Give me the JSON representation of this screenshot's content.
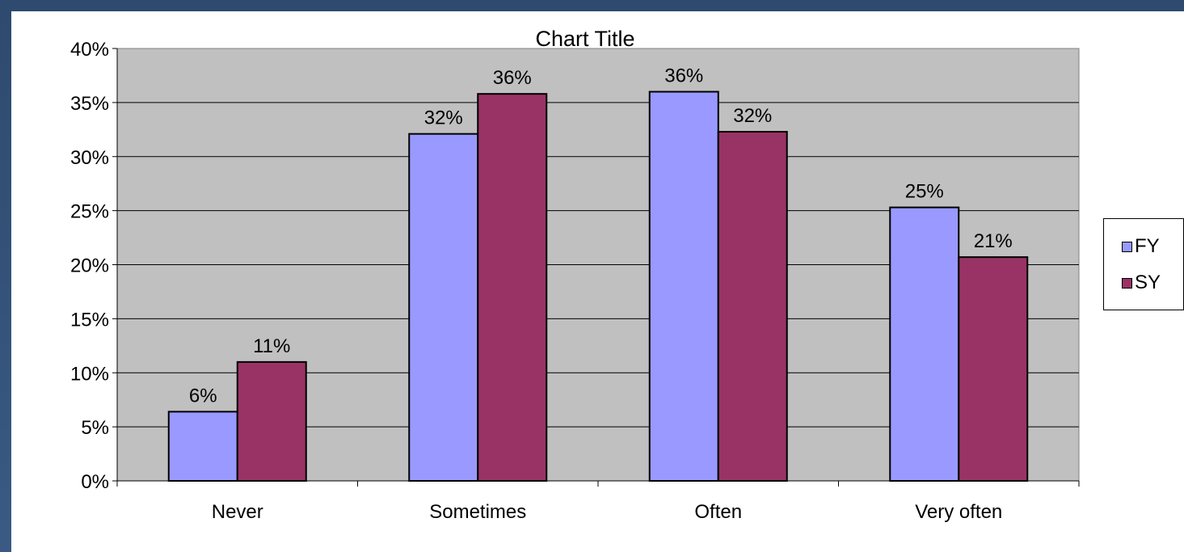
{
  "chart_data": {
    "type": "bar",
    "title": "Chart Title",
    "categories": [
      "Never",
      "Sometimes",
      "Often",
      "Very often"
    ],
    "series": [
      {
        "name": "FY",
        "values": [
          6.4,
          32.1,
          36.0,
          25.3
        ],
        "labels": [
          "6%",
          "32%",
          "36%",
          "25%"
        ],
        "color": "#9999ff"
      },
      {
        "name": "SY",
        "values": [
          11.0,
          35.8,
          32.3,
          20.7
        ],
        "labels": [
          "11%",
          "36%",
          "32%",
          "21%"
        ],
        "color": "#993366"
      }
    ],
    "y_ticks": [
      "0%",
      "5%",
      "10%",
      "15%",
      "20%",
      "25%",
      "30%",
      "35%",
      "40%"
    ],
    "ylim": [
      0,
      40
    ],
    "grid": true,
    "plot_background": "#c0c0c0",
    "legend_position": "right"
  }
}
